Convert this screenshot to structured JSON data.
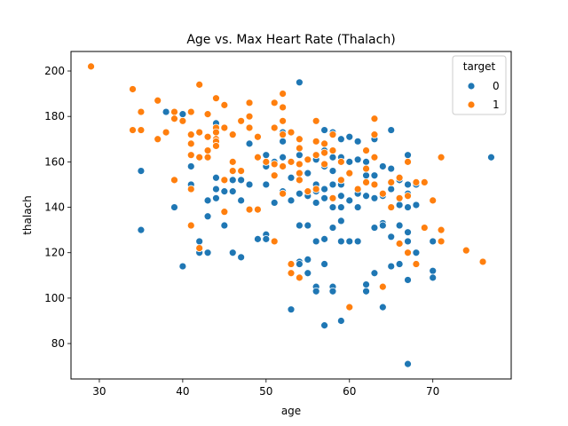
{
  "chart_data": {
    "type": "scatter",
    "title": "Age vs. Max Heart Rate (Thalach)",
    "xlabel": "age",
    "ylabel": "thalach",
    "xlim": [
      26.6,
      79.4
    ],
    "ylim": [
      64.4,
      208.6
    ],
    "xticks": [
      30,
      40,
      50,
      60,
      70
    ],
    "yticks": [
      80,
      100,
      120,
      140,
      160,
      180,
      200
    ],
    "grid": false,
    "legend": {
      "title": "target",
      "position": "top-right"
    },
    "series": [
      {
        "name": "0",
        "color": "#1f77b4",
        "points": [
          [
            35,
            156
          ],
          [
            35,
            130
          ],
          [
            38,
            182
          ],
          [
            39,
            140
          ],
          [
            40,
            181
          ],
          [
            40,
            114
          ],
          [
            41,
            158
          ],
          [
            41,
            150
          ],
          [
            42,
            125
          ],
          [
            42,
            120
          ],
          [
            43,
            143
          ],
          [
            43,
            136
          ],
          [
            43,
            120
          ],
          [
            44,
            177
          ],
          [
            44,
            153
          ],
          [
            44,
            148
          ],
          [
            44,
            144
          ],
          [
            45,
            147
          ],
          [
            45,
            132
          ],
          [
            46,
            152
          ],
          [
            46,
            147
          ],
          [
            46,
            120
          ],
          [
            47,
            152
          ],
          [
            47,
            143
          ],
          [
            47,
            118
          ],
          [
            48,
            168
          ],
          [
            48,
            150
          ],
          [
            49,
            126
          ],
          [
            50,
            163
          ],
          [
            50,
            158
          ],
          [
            50,
            150
          ],
          [
            50,
            128
          ],
          [
            50,
            126
          ],
          [
            51,
            160
          ],
          [
            51,
            142
          ],
          [
            51,
            125
          ],
          [
            52,
            173
          ],
          [
            52,
            169
          ],
          [
            52,
            162
          ],
          [
            52,
            147
          ],
          [
            53,
            153
          ],
          [
            53,
            143
          ],
          [
            53,
            95
          ],
          [
            54,
            195
          ],
          [
            54,
            163
          ],
          [
            54,
            146
          ],
          [
            54,
            132
          ],
          [
            54,
            116
          ],
          [
            54,
            115
          ],
          [
            55,
            161
          ],
          [
            55,
            155
          ],
          [
            55,
            145
          ],
          [
            55,
            132
          ],
          [
            55,
            117
          ],
          [
            55,
            111
          ],
          [
            56,
            161
          ],
          [
            56,
            150
          ],
          [
            56,
            147
          ],
          [
            56,
            142
          ],
          [
            56,
            125
          ],
          [
            56,
            105
          ],
          [
            56,
            103
          ],
          [
            57,
            174
          ],
          [
            57,
            165
          ],
          [
            57,
            158
          ],
          [
            57,
            148
          ],
          [
            57,
            144
          ],
          [
            57,
            126
          ],
          [
            57,
            115
          ],
          [
            57,
            88
          ],
          [
            58,
            173
          ],
          [
            58,
            162
          ],
          [
            58,
            156
          ],
          [
            58,
            150
          ],
          [
            58,
            140
          ],
          [
            58,
            131
          ],
          [
            58,
            105
          ],
          [
            58,
            103
          ],
          [
            59,
            170
          ],
          [
            59,
            162
          ],
          [
            59,
            150
          ],
          [
            59,
            145
          ],
          [
            59,
            140
          ],
          [
            59,
            134
          ],
          [
            59,
            125
          ],
          [
            59,
            90
          ],
          [
            60,
            171
          ],
          [
            60,
            160
          ],
          [
            60,
            155
          ],
          [
            60,
            143
          ],
          [
            60,
            125
          ],
          [
            61,
            169
          ],
          [
            61,
            161
          ],
          [
            61,
            146
          ],
          [
            61,
            140
          ],
          [
            61,
            125
          ],
          [
            62,
            160
          ],
          [
            62,
            154
          ],
          [
            62,
            145
          ],
          [
            62,
            106
          ],
          [
            62,
            103
          ],
          [
            63,
            170
          ],
          [
            63,
            154
          ],
          [
            63,
            144
          ],
          [
            63,
            131
          ],
          [
            63,
            111
          ],
          [
            64,
            158
          ],
          [
            64,
            145
          ],
          [
            64,
            133
          ],
          [
            64,
            132
          ],
          [
            64,
            96
          ],
          [
            65,
            174
          ],
          [
            65,
            157
          ],
          [
            65,
            148
          ],
          [
            65,
            127
          ],
          [
            65,
            114
          ],
          [
            66,
            152
          ],
          [
            66,
            141
          ],
          [
            66,
            132
          ],
          [
            66,
            115
          ],
          [
            67,
            163
          ],
          [
            67,
            150
          ],
          [
            67,
            146
          ],
          [
            67,
            140
          ],
          [
            67,
            129
          ],
          [
            67,
            125
          ],
          [
            67,
            108
          ],
          [
            67,
            71
          ],
          [
            68,
            150
          ],
          [
            68,
            141
          ],
          [
            68,
            120
          ],
          [
            69,
            131
          ],
          [
            70,
            125
          ],
          [
            70,
            112
          ],
          [
            70,
            109
          ],
          [
            77,
            162
          ]
        ]
      },
      {
        "name": "1",
        "color": "#ff7f0e",
        "points": [
          [
            29,
            202
          ],
          [
            34,
            192
          ],
          [
            34,
            174
          ],
          [
            35,
            182
          ],
          [
            35,
            174
          ],
          [
            37,
            187
          ],
          [
            37,
            170
          ],
          [
            38,
            173
          ],
          [
            39,
            182
          ],
          [
            39,
            179
          ],
          [
            39,
            152
          ],
          [
            40,
            178
          ],
          [
            41,
            182
          ],
          [
            41,
            172
          ],
          [
            41,
            168
          ],
          [
            41,
            163
          ],
          [
            41,
            148
          ],
          [
            41,
            132
          ],
          [
            42,
            194
          ],
          [
            42,
            173
          ],
          [
            42,
            162
          ],
          [
            42,
            122
          ],
          [
            43,
            181
          ],
          [
            43,
            171
          ],
          [
            43,
            165
          ],
          [
            43,
            162
          ],
          [
            44,
            188
          ],
          [
            44,
            175
          ],
          [
            44,
            173
          ],
          [
            44,
            170
          ],
          [
            44,
            169
          ],
          [
            44,
            167
          ],
          [
            45,
            185
          ],
          [
            45,
            175
          ],
          [
            45,
            152
          ],
          [
            45,
            138
          ],
          [
            46,
            172
          ],
          [
            46,
            160
          ],
          [
            46,
            156
          ],
          [
            47,
            178
          ],
          [
            47,
            156
          ],
          [
            48,
            186
          ],
          [
            48,
            180
          ],
          [
            48,
            175
          ],
          [
            48,
            139
          ],
          [
            49,
            171
          ],
          [
            49,
            162
          ],
          [
            49,
            139
          ],
          [
            50,
            160
          ],
          [
            51,
            186
          ],
          [
            51,
            175
          ],
          [
            51,
            159
          ],
          [
            51,
            154
          ],
          [
            51,
            125
          ],
          [
            52,
            190
          ],
          [
            52,
            184
          ],
          [
            52,
            178
          ],
          [
            52,
            172
          ],
          [
            52,
            158
          ],
          [
            52,
            146
          ],
          [
            53,
            173
          ],
          [
            53,
            160
          ],
          [
            53,
            115
          ],
          [
            53,
            111
          ],
          [
            54,
            170
          ],
          [
            54,
            166
          ],
          [
            54,
            159
          ],
          [
            54,
            155
          ],
          [
            54,
            152
          ],
          [
            54,
            109
          ],
          [
            55,
            161
          ],
          [
            55,
            147
          ],
          [
            56,
            178
          ],
          [
            56,
            169
          ],
          [
            56,
            163
          ],
          [
            56,
            148
          ],
          [
            57,
            168
          ],
          [
            57,
            164
          ],
          [
            57,
            159
          ],
          [
            58,
            172
          ],
          [
            58,
            165
          ],
          [
            58,
            144
          ],
          [
            59,
            160
          ],
          [
            59,
            152
          ],
          [
            60,
            155
          ],
          [
            60,
            96
          ],
          [
            61,
            148
          ],
          [
            62,
            165
          ],
          [
            62,
            157
          ],
          [
            62,
            151
          ],
          [
            63,
            179
          ],
          [
            63,
            172
          ],
          [
            63,
            162
          ],
          [
            63,
            150
          ],
          [
            64,
            146
          ],
          [
            64,
            105
          ],
          [
            65,
            151
          ],
          [
            65,
            140
          ],
          [
            66,
            153
          ],
          [
            66,
            144
          ],
          [
            66,
            124
          ],
          [
            67,
            160
          ],
          [
            67,
            145
          ],
          [
            67,
            120
          ],
          [
            68,
            151
          ],
          [
            68,
            115
          ],
          [
            69,
            151
          ],
          [
            69,
            131
          ],
          [
            70,
            143
          ],
          [
            71,
            162
          ],
          [
            71,
            130
          ],
          [
            71,
            125
          ],
          [
            74,
            121
          ],
          [
            76,
            116
          ]
        ]
      }
    ]
  }
}
